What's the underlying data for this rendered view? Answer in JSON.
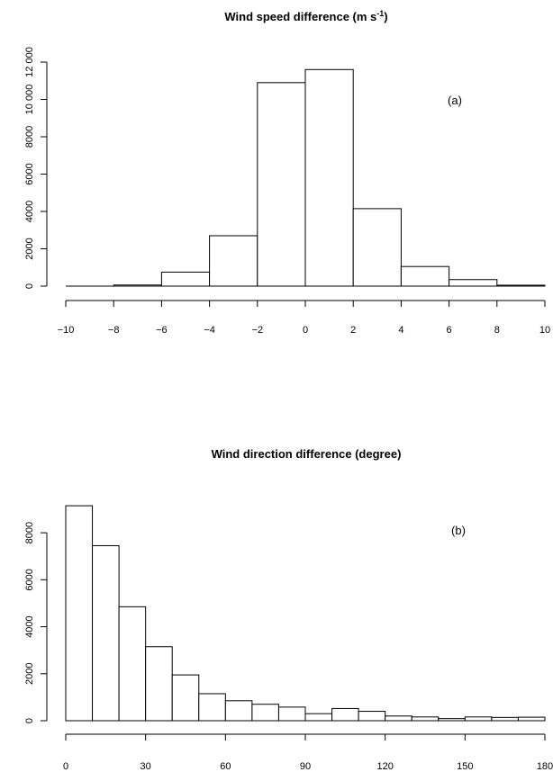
{
  "chart_data": [
    {
      "type": "bar",
      "title_main": "Wind speed difference (m s",
      "title_sup": "-1",
      "title_end": ")",
      "panel_label": "(a)",
      "bin_edges": [
        -10,
        -8,
        -6,
        -4,
        -2,
        0,
        2,
        4,
        6,
        8,
        10
      ],
      "values": [
        0,
        60,
        750,
        2700,
        10900,
        11600,
        4150,
        1050,
        350,
        50
      ],
      "xlim": [
        -10,
        10
      ],
      "ylim": [
        0,
        12000
      ],
      "x_ticks": [
        -10,
        -8,
        -6,
        -4,
        -2,
        0,
        2,
        4,
        6,
        8,
        10
      ],
      "x_tick_labels": [
        "−10",
        "−8",
        "−6",
        "−4",
        "−2",
        "0",
        "2",
        "4",
        "6",
        "8",
        "10"
      ],
      "y_ticks": [
        0,
        2000,
        4000,
        6000,
        8000,
        10000,
        12000
      ],
      "y_tick_labels": [
        "0",
        "2000",
        "4000",
        "6000",
        "8000",
        "10 000",
        "12 000"
      ]
    },
    {
      "type": "bar",
      "title_main": "Wind direction difference (degree)",
      "title_sup": "",
      "title_end": "",
      "panel_label": "(b)",
      "bin_edges": [
        0,
        10,
        20,
        30,
        40,
        50,
        60,
        70,
        80,
        90,
        100,
        110,
        120,
        130,
        140,
        150,
        160,
        170,
        180
      ],
      "values": [
        9150,
        7450,
        4850,
        3150,
        1950,
        1150,
        850,
        700,
        580,
        300,
        520,
        400,
        200,
        160,
        90,
        160,
        140,
        150
      ],
      "xlim": [
        0,
        180
      ],
      "ylim": [
        0,
        9000
      ],
      "x_ticks": [
        0,
        30,
        60,
        90,
        120,
        150,
        180
      ],
      "x_tick_labels": [
        "0",
        "30",
        "60",
        "90",
        "120",
        "150",
        "180"
      ],
      "y_ticks": [
        0,
        2000,
        4000,
        6000,
        8000
      ],
      "y_tick_labels": [
        "0",
        "2000",
        "4000",
        "6000",
        "8000"
      ]
    }
  ]
}
